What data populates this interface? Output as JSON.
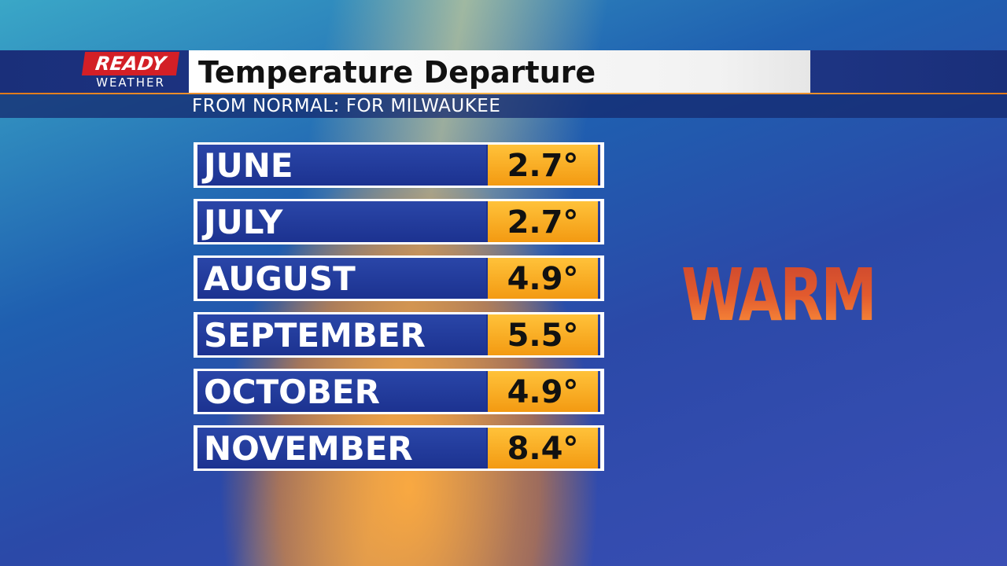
{
  "logo": {
    "top": "READY",
    "bottom": "WEATHER"
  },
  "header": {
    "title": "Temperature Departure",
    "subtitle": "FROM NORMAL: FOR MILWAUKEE"
  },
  "rows": [
    {
      "label": "JUNE",
      "value": "2.7°"
    },
    {
      "label": "JULY",
      "value": "2.7°"
    },
    {
      "label": "AUGUST",
      "value": "4.9°"
    },
    {
      "label": "SEPTEMBER",
      "value": "5.5°"
    },
    {
      "label": "OCTOBER",
      "value": "4.9°"
    },
    {
      "label": "NOVEMBER",
      "value": "8.4°"
    }
  ],
  "badge": "WARM"
}
